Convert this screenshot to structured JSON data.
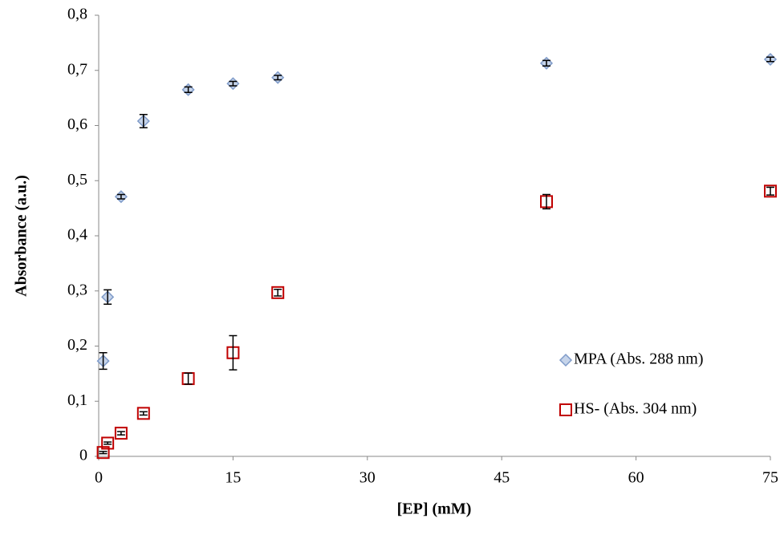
{
  "chart_data": {
    "type": "scatter",
    "x_label": "[EP] (mM)",
    "y_label": "Absorbance (a.u.)",
    "xlim": [
      0,
      75
    ],
    "xticks": [
      0,
      15,
      30,
      45,
      60,
      75
    ],
    "ylim": [
      0,
      0.8
    ],
    "yticks": [
      0,
      {
        "value": 0.1,
        "label": "0,1"
      },
      {
        "value": 0.2,
        "label": "0,2"
      },
      {
        "value": 0.3,
        "label": "0,3"
      },
      {
        "value": 0.4,
        "label": "0,4"
      },
      {
        "value": 0.5,
        "label": "0,5"
      },
      {
        "value": 0.6,
        "label": "0,6"
      },
      {
        "value": 0.7,
        "label": "0,7"
      },
      {
        "value": 0.8,
        "label": "0,8"
      }
    ],
    "grid": false,
    "legend": "right",
    "series": [
      {
        "name": "MPA (Abs. 288 nm)",
        "color": "#7f9bc9",
        "marker": "diamond",
        "x": [
          0.5,
          1,
          2.5,
          5,
          10,
          15,
          20,
          50,
          75
        ],
        "values": [
          0.173,
          0.289,
          0.471,
          0.608,
          0.665,
          0.676,
          0.687,
          0.713,
          0.72
        ],
        "errors": [
          0.015,
          0.013,
          0.004,
          0.012,
          0.005,
          0.004,
          0.004,
          0.005,
          0.004
        ]
      },
      {
        "name": "HS- (Abs. 304 nm)",
        "color": "#c00000",
        "marker": "square",
        "x": [
          0.5,
          1,
          2.5,
          5,
          10,
          15,
          20,
          50,
          75
        ],
        "values": [
          0.007,
          0.024,
          0.042,
          0.078,
          0.141,
          0.188,
          0.297,
          0.462,
          0.481
        ],
        "errors": [
          0.002,
          0.002,
          0.003,
          0.003,
          0.01,
          0.031,
          0.006,
          0.013,
          0.007
        ]
      }
    ]
  }
}
